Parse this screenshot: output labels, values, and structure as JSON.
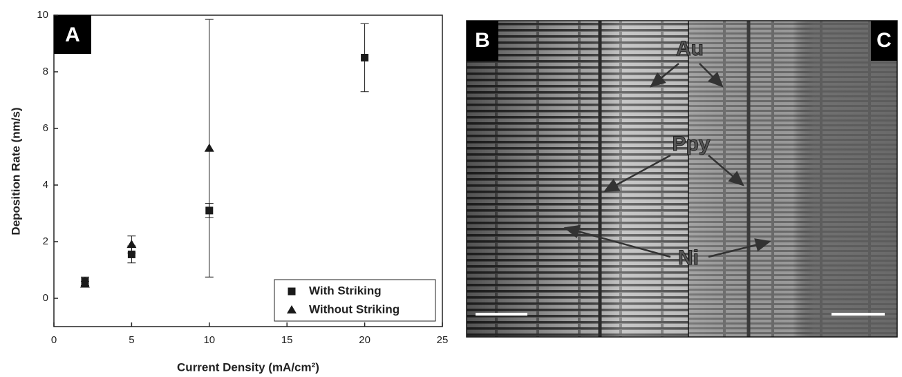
{
  "chart_data": {
    "type": "scatter",
    "panel_label": "A",
    "x_label": "Current Density (mA/cm²)",
    "y_label": "Deposition Rate (nm/s)",
    "xlim": [
      0,
      25
    ],
    "xticks": [
      0,
      5,
      10,
      15,
      20,
      25
    ],
    "ylim": [
      -1,
      10
    ],
    "yticks": [
      0,
      2,
      4,
      6,
      8,
      10
    ],
    "legend": "lower right",
    "series": [
      {
        "name": "With Striking",
        "marker": "square",
        "color": "#1a1a1a",
        "x": [
          2,
          5,
          10,
          20
        ],
        "values": [
          0.6,
          1.55,
          3.1,
          8.5
        ],
        "errors": [
          0.15,
          0.3,
          0.25,
          1.2
        ]
      },
      {
        "name": "Without Striking",
        "marker": "triangle",
        "color": "#1a1a1a",
        "x": [
          2,
          5,
          10
        ],
        "values": [
          0.5,
          1.9,
          5.3
        ],
        "errors": [
          0.1,
          0.3,
          4.55
        ]
      }
    ]
  },
  "image_panels": {
    "labels": [
      "B",
      "C"
    ],
    "annotations": [
      "Au",
      "Ppy",
      "Ni"
    ]
  }
}
